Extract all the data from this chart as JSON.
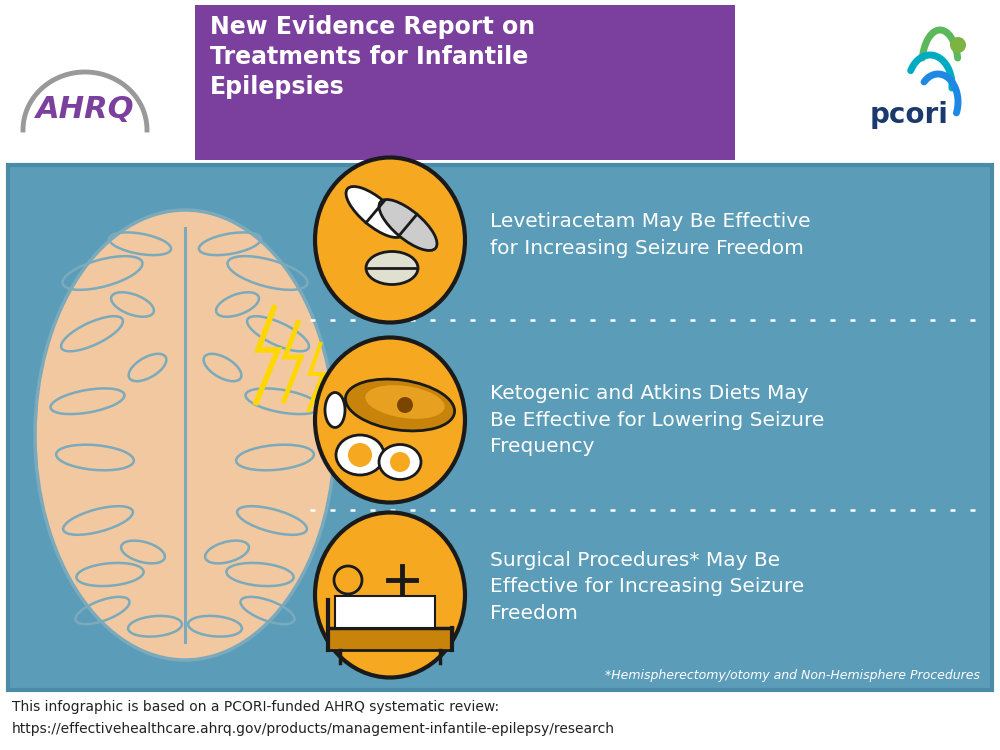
{
  "header_bg_color": "#7B3F9E",
  "header_text_color": "#FFFFFF",
  "main_bg_color": "#5B9DB8",
  "main_border_color": "#4A8CA8",
  "footer_text_color": "#222222",
  "footer_bg_color": "#FFFFFF",
  "circle_fill_color": "#F5A820",
  "circle_border_color": "#1A1A1A",
  "text_color_main": "#FFFFFF",
  "dotted_line_color": "#FFFFFF",
  "brain_fill": "#F2C8A0",
  "brain_outline": "#5B9DB8",
  "brain_lines_color": "#7AAABB",
  "lightning_color": "#FFD700",
  "item1_text": "Levetiracetam May Be Effective\nfor Increasing Seizure Freedom",
  "item2_text": "Ketogenic and Atkins Diets May\nBe Effective for Lowering Seizure\nFrequency",
  "item3_text": "Surgical Procedures* May Be\nEffective for Increasing Seizure\nFreedom",
  "footnote_text": "*Hemispherectomy/otomy and Non-Hemisphere Procedures",
  "footer_line1": "This infographic is based on a PCORI-funded AHRQ systematic review:",
  "footer_line2": "https://effectivehealthcare.ahrq.gov/products/management-infantile-epilepsy/research",
  "ahrq_purple": "#7B3F9E",
  "ahrq_gray": "#999999",
  "pcori_blue": "#1A3A6E",
  "pcori_green": "#4CAF50",
  "pcori_teal": "#00BCD4",
  "pcori_dot_green": "#7CB342"
}
